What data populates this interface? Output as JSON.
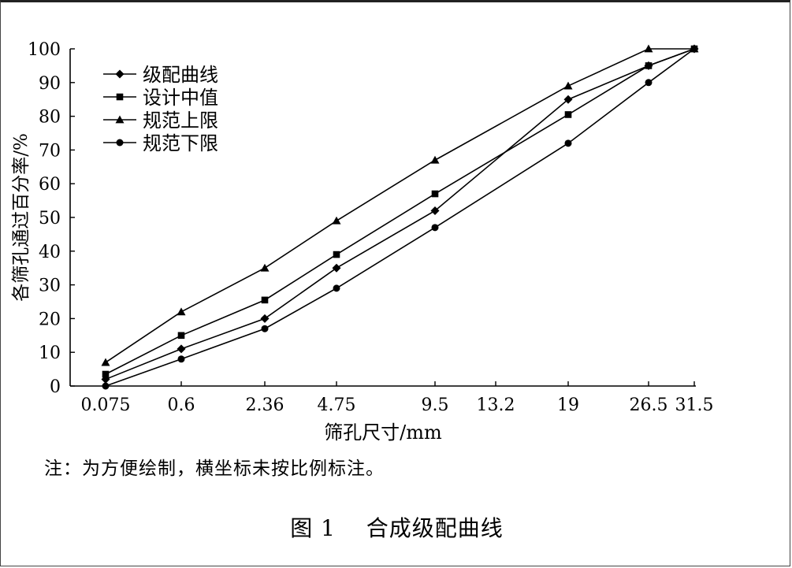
{
  "chart_data": {
    "type": "line",
    "categories": [
      "0.075",
      "0.6",
      "2.36",
      "4.75",
      "9.5",
      "13.2",
      "19",
      "26.5",
      "31.5"
    ],
    "xlabel": "筛孔尺寸/mm",
    "ylabel": "各筛孔通过百分率/%",
    "ylim": [
      0,
      100
    ],
    "yticks": [
      "0",
      "10",
      "20",
      "30",
      "40",
      "50",
      "60",
      "70",
      "80",
      "90",
      "100"
    ],
    "grid": false,
    "legend_position": "top-left",
    "series": [
      {
        "name": "级配曲线",
        "marker": "diamond",
        "values": [
          2,
          11,
          20,
          35,
          52,
          null,
          85,
          95,
          100
        ]
      },
      {
        "name": "设计中值",
        "marker": "square",
        "values": [
          3.5,
          15,
          25.5,
          39,
          57,
          null,
          80.5,
          95,
          100
        ]
      },
      {
        "name": "规范上限",
        "marker": "triangle",
        "values": [
          7,
          22,
          35,
          49,
          67,
          null,
          89,
          100,
          100
        ]
      },
      {
        "name": "规范下限",
        "marker": "circle",
        "values": [
          0,
          8,
          17,
          29,
          47,
          null,
          72,
          90,
          100
        ]
      }
    ]
  },
  "note": "注：为方便绘制，横坐标未按比例标注。",
  "caption": "图 1　 合成级配曲线"
}
